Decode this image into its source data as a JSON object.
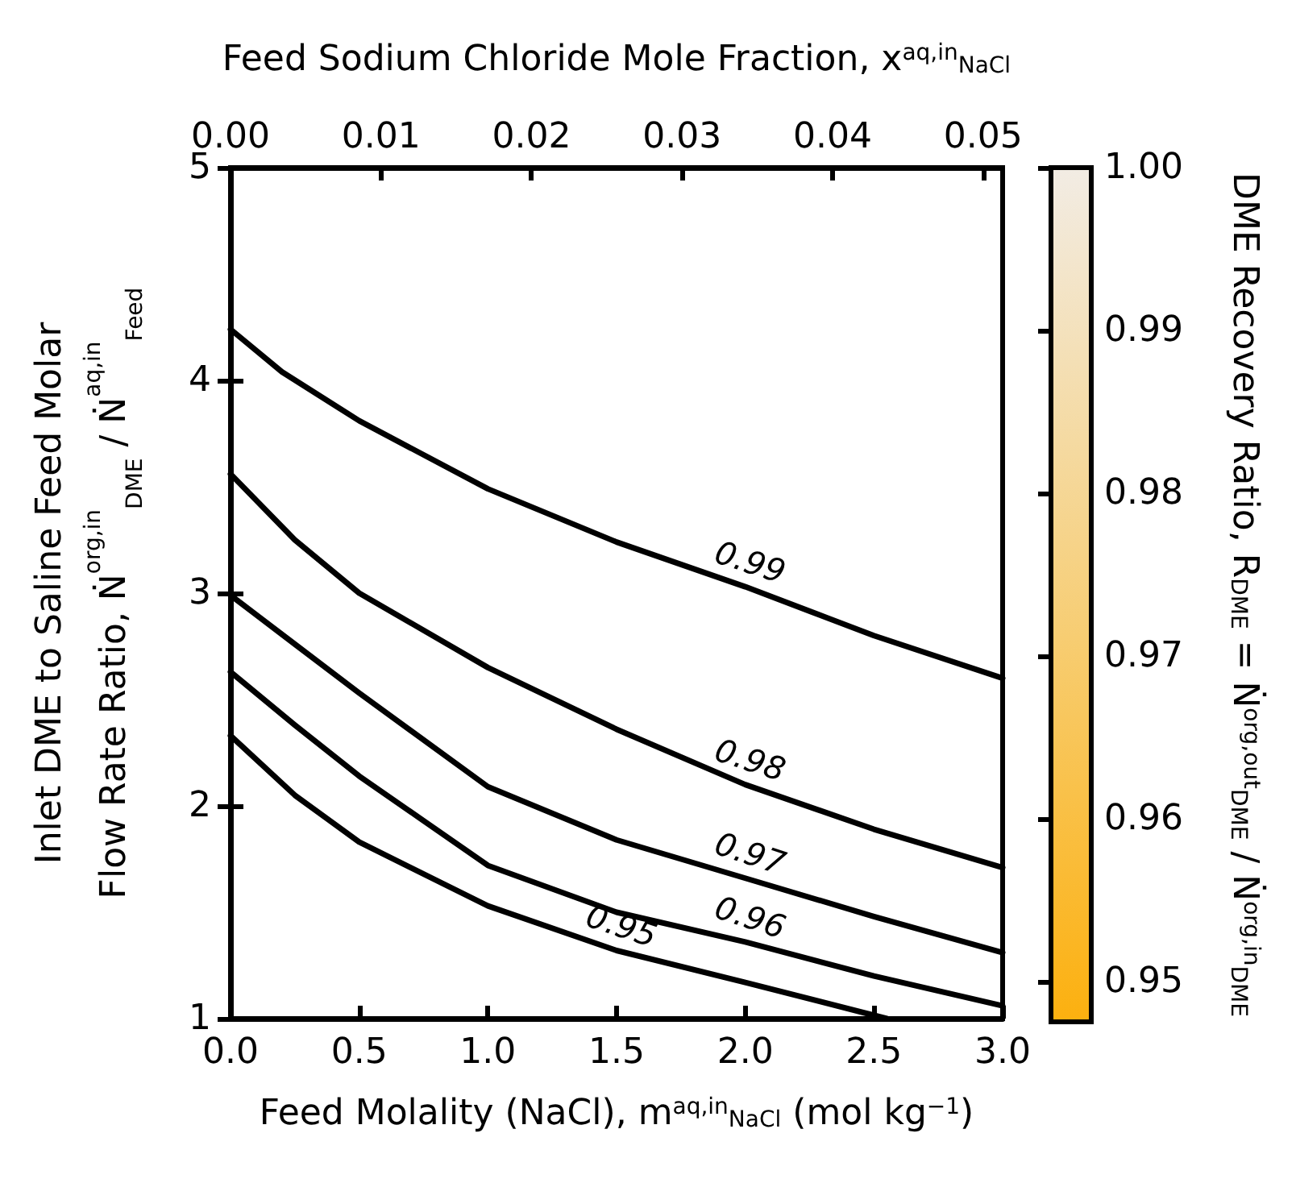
{
  "chart_data": {
    "type": "line",
    "xlabel": "Feed Molality (NaCl), m$^{aq,in}$$_{NaCl}$ (mol kg$^{−1}$)",
    "x2label": "Feed Sodium Chloride Mole Fraction, x$^{aq,in}$$_{NaCl}$",
    "ylabel": "Inlet DME to Saline Feed Molar\nFlow Rate Ratio, Ṅ$^{org,in}$$_{DME}$ / Ṅ$^{aq,in}$$_{Feed}$",
    "clabel": "DME Recovery Ratio, R$_{DME}$ = Ṅ$^{org,out}$$_{DME}$ / Ṅ$^{org,in}$$_{DME}$",
    "xlim": [
      0,
      3
    ],
    "xticks": [
      {
        "value": 0,
        "label": "0.0"
      },
      0.5,
      {
        "value": 1,
        "label": "1.0"
      },
      1.5,
      {
        "value": 2,
        "label": "2.0"
      },
      2.5,
      {
        "value": 3,
        "label": "3.0"
      }
    ],
    "x2lim": [
      0,
      0.0513
    ],
    "x2ticks": [
      {
        "value": 0,
        "label": "0.00"
      },
      0.01,
      0.02,
      0.03,
      0.04,
      0.05
    ],
    "ylim": [
      1,
      5
    ],
    "yticks": [
      1,
      2,
      3,
      4,
      5
    ],
    "clim": [
      0.9475,
      1.0
    ],
    "cticks": [
      0.95,
      0.96,
      0.97,
      0.98,
      0.99,
      {
        "value": 1.0,
        "label": "1.00"
      }
    ],
    "legend": false,
    "grid": false,
    "marker": "none",
    "line_style": "solid",
    "series": [
      {
        "name": "0.95",
        "color": "#000000",
        "x": [
          0,
          0.25,
          0.5,
          1.0,
          1.5,
          2.0,
          2.55
        ],
        "values": [
          2.33,
          2.05,
          1.83,
          1.53,
          1.32,
          1.17,
          1.0
        ]
      },
      {
        "name": "0.96",
        "color": "#000000",
        "x": [
          0,
          0.25,
          0.5,
          1.0,
          1.5,
          2.0,
          2.5,
          3.0
        ],
        "values": [
          2.63,
          2.38,
          2.14,
          1.72,
          1.5,
          1.36,
          1.2,
          1.06
        ]
      },
      {
        "name": "0.97",
        "color": "#000000",
        "x": [
          0,
          0.25,
          0.5,
          1.0,
          1.5,
          2.0,
          2.5,
          3.0
        ],
        "values": [
          2.99,
          2.76,
          2.53,
          2.09,
          1.84,
          1.66,
          1.48,
          1.31
        ]
      },
      {
        "name": "0.98",
        "color": "#000000",
        "x": [
          0,
          0.25,
          0.5,
          1.0,
          1.5,
          2.0,
          2.5,
          3.0
        ],
        "values": [
          3.56,
          3.25,
          3.0,
          2.65,
          2.36,
          2.1,
          1.89,
          1.71
        ]
      },
      {
        "name": "0.99",
        "color": "#000000",
        "x": [
          0,
          0.2,
          0.5,
          1.0,
          1.5,
          2.0,
          2.5,
          3.0
        ],
        "values": [
          4.24,
          4.04,
          3.81,
          3.49,
          3.24,
          3.03,
          2.8,
          2.6
        ]
      }
    ]
  }
}
